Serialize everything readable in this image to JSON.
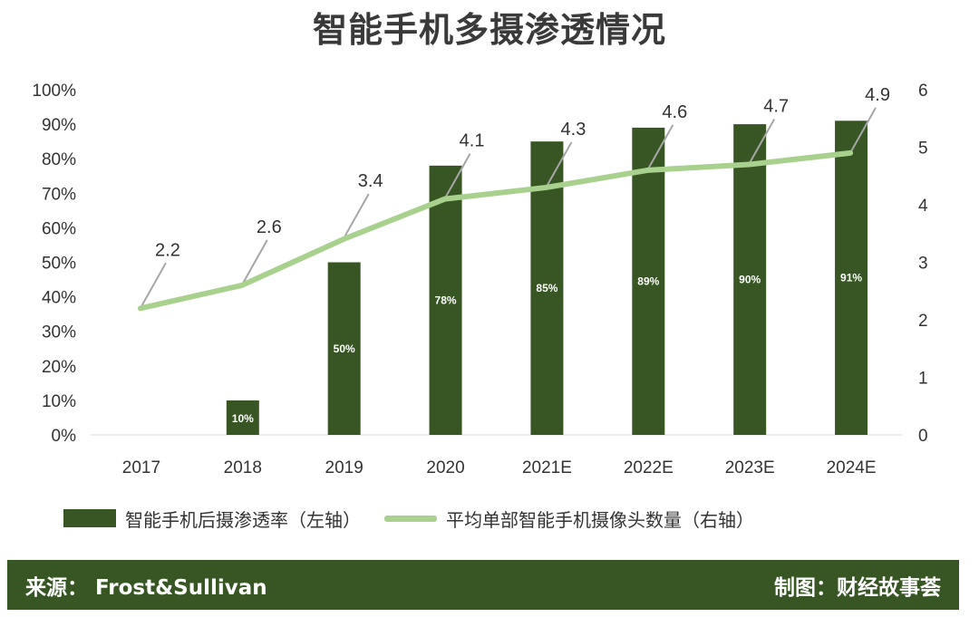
{
  "title": "智能手机多摄渗透情况",
  "chart_data": {
    "type": "bar",
    "categories": [
      "2017",
      "2018",
      "2019",
      "2020",
      "2021E",
      "2022E",
      "2023E",
      "2024E"
    ],
    "series": [
      {
        "name": "智能手机后摄渗透率（左轴）",
        "type": "bar",
        "axis": "left",
        "values": [
          0,
          10,
          50,
          78,
          85,
          89,
          90,
          91
        ],
        "labels": [
          null,
          "10%",
          "50%",
          "78%",
          "85%",
          "89%",
          "90%",
          "91%"
        ],
        "color": "#375623"
      },
      {
        "name": "平均单部智能手机摄像头数量（右轴）",
        "type": "line",
        "axis": "right",
        "values": [
          2.2,
          2.6,
          3.4,
          4.1,
          4.3,
          4.6,
          4.7,
          4.9
        ],
        "labels": [
          "2.2",
          "2.6",
          "3.4",
          "4.1",
          "4.3",
          "4.6",
          "4.7",
          "4.9"
        ],
        "color": "#a9d18e"
      }
    ],
    "y_left": {
      "ylim": [
        0,
        100
      ],
      "ticks": [
        "0%",
        "10%",
        "20%",
        "30%",
        "40%",
        "50%",
        "60%",
        "70%",
        "80%",
        "90%",
        "100%"
      ]
    },
    "y_right": {
      "ylim": [
        0,
        6
      ],
      "ticks": [
        "0",
        "1",
        "2",
        "3",
        "4",
        "5",
        "6"
      ]
    },
    "grid": false,
    "legend_position": "bottom"
  },
  "legend": {
    "bar_label": "智能手机后摄渗透率（左轴）",
    "line_label": "平均单部智能手机摄像头数量（右轴）"
  },
  "footer": {
    "source": "来源：  Frost&Sullivan",
    "credit": "制图：财经故事荟"
  }
}
